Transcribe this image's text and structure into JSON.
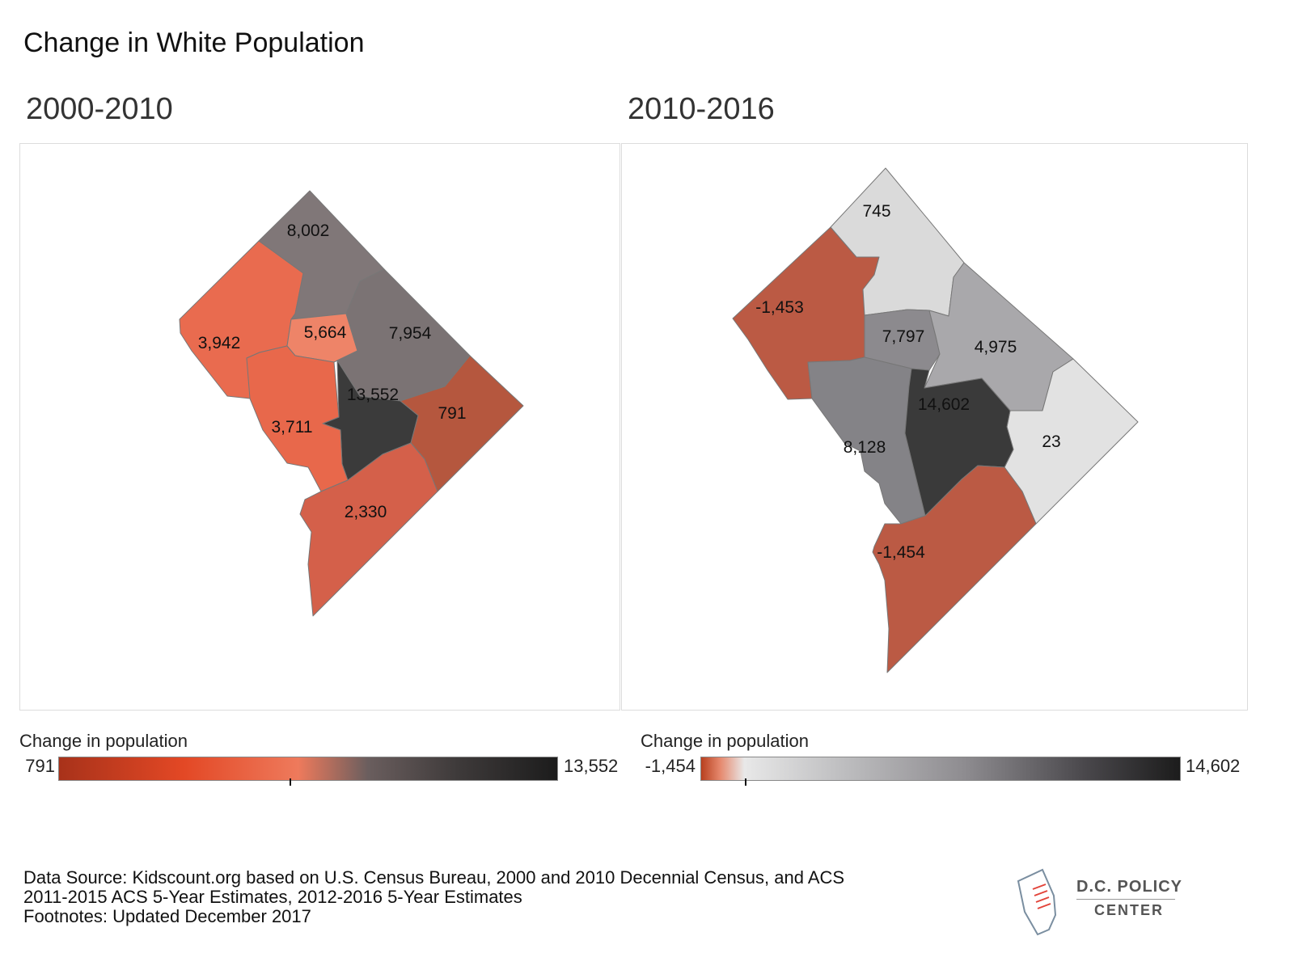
{
  "title": "Change in White Population",
  "maps": [
    {
      "subtitle": "2000-2010",
      "legend": {
        "title": "Change in population",
        "min_label": "791",
        "max_label": "13,552",
        "tick_value": 6700
      },
      "wards": [
        {
          "ward": 1,
          "value": 5664,
          "label": "5,664",
          "color": "#ee8468"
        },
        {
          "ward": 2,
          "value": 13552,
          "label": "13,552",
          "color": "#3b3b3b"
        },
        {
          "ward": 3,
          "value": 3711,
          "label": "3,711",
          "color": "#e8684b"
        },
        {
          "ward": 4,
          "value": 8002,
          "label": "8,002",
          "color": "#807778"
        },
        {
          "ward": 5,
          "value": 7954,
          "label": "7,954",
          "color": "#7b7374"
        },
        {
          "ward": 6,
          "value": 2330,
          "label": "2,330",
          "color": "#d4604a"
        },
        {
          "ward": 7,
          "value": 791,
          "label": "791",
          "color": "#b5573e"
        },
        {
          "ward": 8,
          "value": 3942,
          "label": "3,942",
          "color": "#e96b4f"
        }
      ]
    },
    {
      "subtitle": "2010-2016",
      "legend": {
        "title": "Change in population",
        "min_label": "-1,454",
        "max_label": "14,602",
        "tick_value": 0
      },
      "wards": [
        {
          "ward": 1,
          "value": -1453,
          "label": "-1,453",
          "color": "#bb5a44"
        },
        {
          "ward": 2,
          "value": 7797,
          "label": "7,797",
          "color": "#8c8a8e"
        },
        {
          "ward": 3,
          "value": 745,
          "label": "745",
          "color": "#dadada"
        },
        {
          "ward": 4,
          "value": 4975,
          "label": "4,975",
          "color": "#a9a8ab"
        },
        {
          "ward": 5,
          "value": 23,
          "label": "23",
          "color": "#e2e2e2"
        },
        {
          "ward": 6,
          "value": 8128,
          "label": "8,128",
          "color": "#848387"
        },
        {
          "ward": 7,
          "value": 14602,
          "label": "14,602",
          "color": "#3a3a3a"
        },
        {
          "ward": 8,
          "value": -1454,
          "label": "-1,454",
          "color": "#bb5a44"
        }
      ]
    }
  ],
  "footer": {
    "line1": "Data Source: Kidscount.org based on U.S. Census Bureau, 2000 and 2010 Decennial Census, and ACS",
    "line2": "2011-2015 ACS 5-Year Estimates, 2012-2016 5-Year Estimates",
    "line3": "Footnotes: Updated December 2017"
  },
  "logo": {
    "line1": "D.C. POLICY",
    "line2": "CENTER"
  }
}
